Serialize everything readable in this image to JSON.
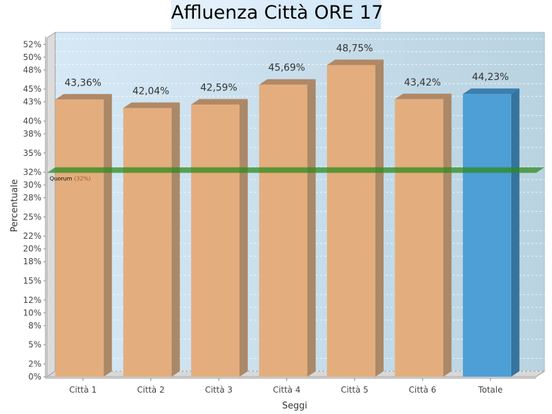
{
  "chart_data": {
    "type": "bar",
    "title": "Affluenza Città ORE 17",
    "xlabel": "Seggi",
    "ylabel": "Percentuale",
    "categories": [
      "Città 1",
      "Città 2",
      "Città 3",
      "Città 4",
      "Città 5",
      "Città 6",
      "Totale"
    ],
    "values": [
      43.36,
      42.04,
      42.59,
      45.69,
      48.75,
      43.42,
      44.23
    ],
    "value_labels": [
      "43,36%",
      "42,04%",
      "42,59%",
      "45,69%",
      "48,75%",
      "43,42%",
      "44,23%"
    ],
    "ylim": [
      0,
      53
    ],
    "yticks": [
      "0%",
      "2%",
      "5%",
      "8%",
      "10%",
      "12%",
      "15%",
      "18%",
      "20%",
      "22%",
      "25%",
      "28%",
      "30%",
      "32%",
      "35%",
      "38%",
      "40%",
      "43%",
      "45%",
      "48%",
      "50%",
      "52%"
    ],
    "grid": true,
    "quorum": {
      "value": 32,
      "label": "Quorum",
      "label_value": "(32%)"
    },
    "colors": {
      "city_bar": "#e4ad7d",
      "total_bar": "#4d9fd6",
      "quorum_line": "#2e8b1e",
      "plot_bg_left": "#d6e8f6",
      "plot_bg_right": "#b9d3e0"
    }
  }
}
